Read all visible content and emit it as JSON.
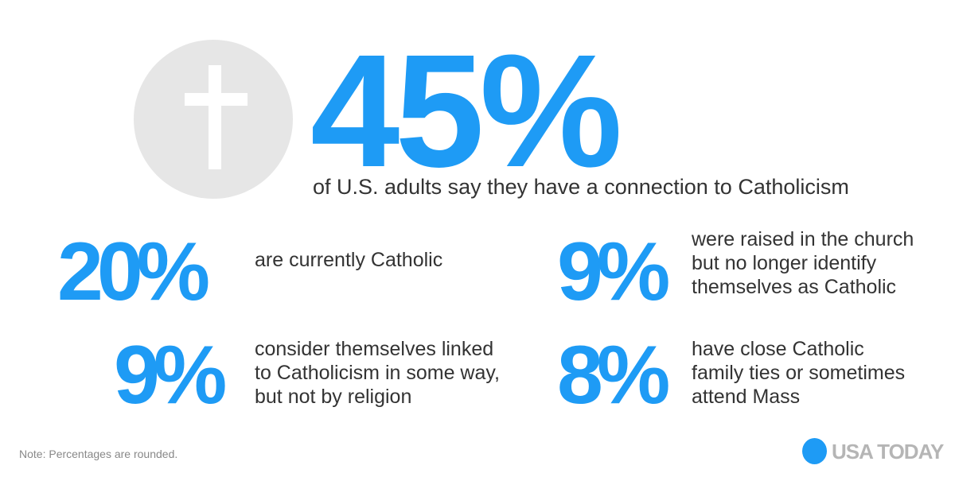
{
  "icon": "latin-cross-icon",
  "colors": {
    "accent": "#1e9bf5",
    "circle": "#e6e6e6",
    "text": "#333333",
    "logo_text": "#b5b5b5"
  },
  "hero": {
    "value": "45%",
    "text": "of U.S. adults say they have a connection to Catholicism"
  },
  "stats": [
    {
      "value": "20%",
      "lines": [
        "are currently Catholic"
      ]
    },
    {
      "value": "9%",
      "lines": [
        "were raised in the church",
        "but no longer identify",
        "themselves as Catholic"
      ]
    },
    {
      "value": "9%",
      "lines": [
        "consider themselves linked",
        "to Catholicism in some way,",
        "but not by religion"
      ]
    },
    {
      "value": "8%",
      "lines": [
        "have close Catholic",
        "family ties or sometimes",
        "attend Mass"
      ]
    }
  ],
  "note": "Note: Percentages are rounded.",
  "logo": "USA TODAY"
}
